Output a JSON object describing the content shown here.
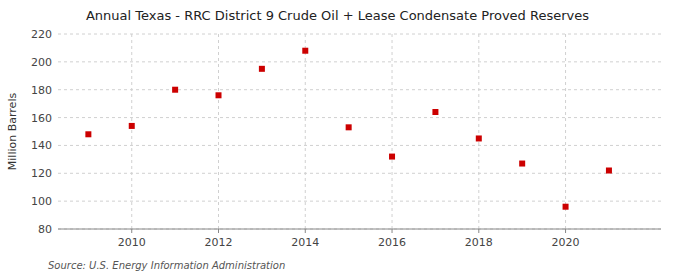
{
  "chart_data": {
    "type": "scatter",
    "title": "Annual Texas - RRC District 9 Crude Oil + Lease Condensate Proved Reserves",
    "y_label": "Million Barrels",
    "source": "Source: U.S. Energy Information Administration",
    "x": [
      2009,
      2010,
      2011,
      2012,
      2013,
      2014,
      2015,
      2016,
      2017,
      2018,
      2019,
      2020,
      2021
    ],
    "values": [
      148,
      154,
      180,
      176,
      195,
      208,
      153,
      132,
      164,
      145,
      127,
      96,
      122
    ],
    "color": "#cc0000",
    "marker": "square",
    "xlim": [
      2008.3,
      2022.2
    ],
    "xticks": [
      2010,
      2012,
      2014,
      2016,
      2018,
      2020
    ],
    "ylim": [
      80,
      220
    ],
    "yticks": [
      80,
      100,
      120,
      140,
      160,
      180,
      200,
      220
    ],
    "grid": true
  }
}
